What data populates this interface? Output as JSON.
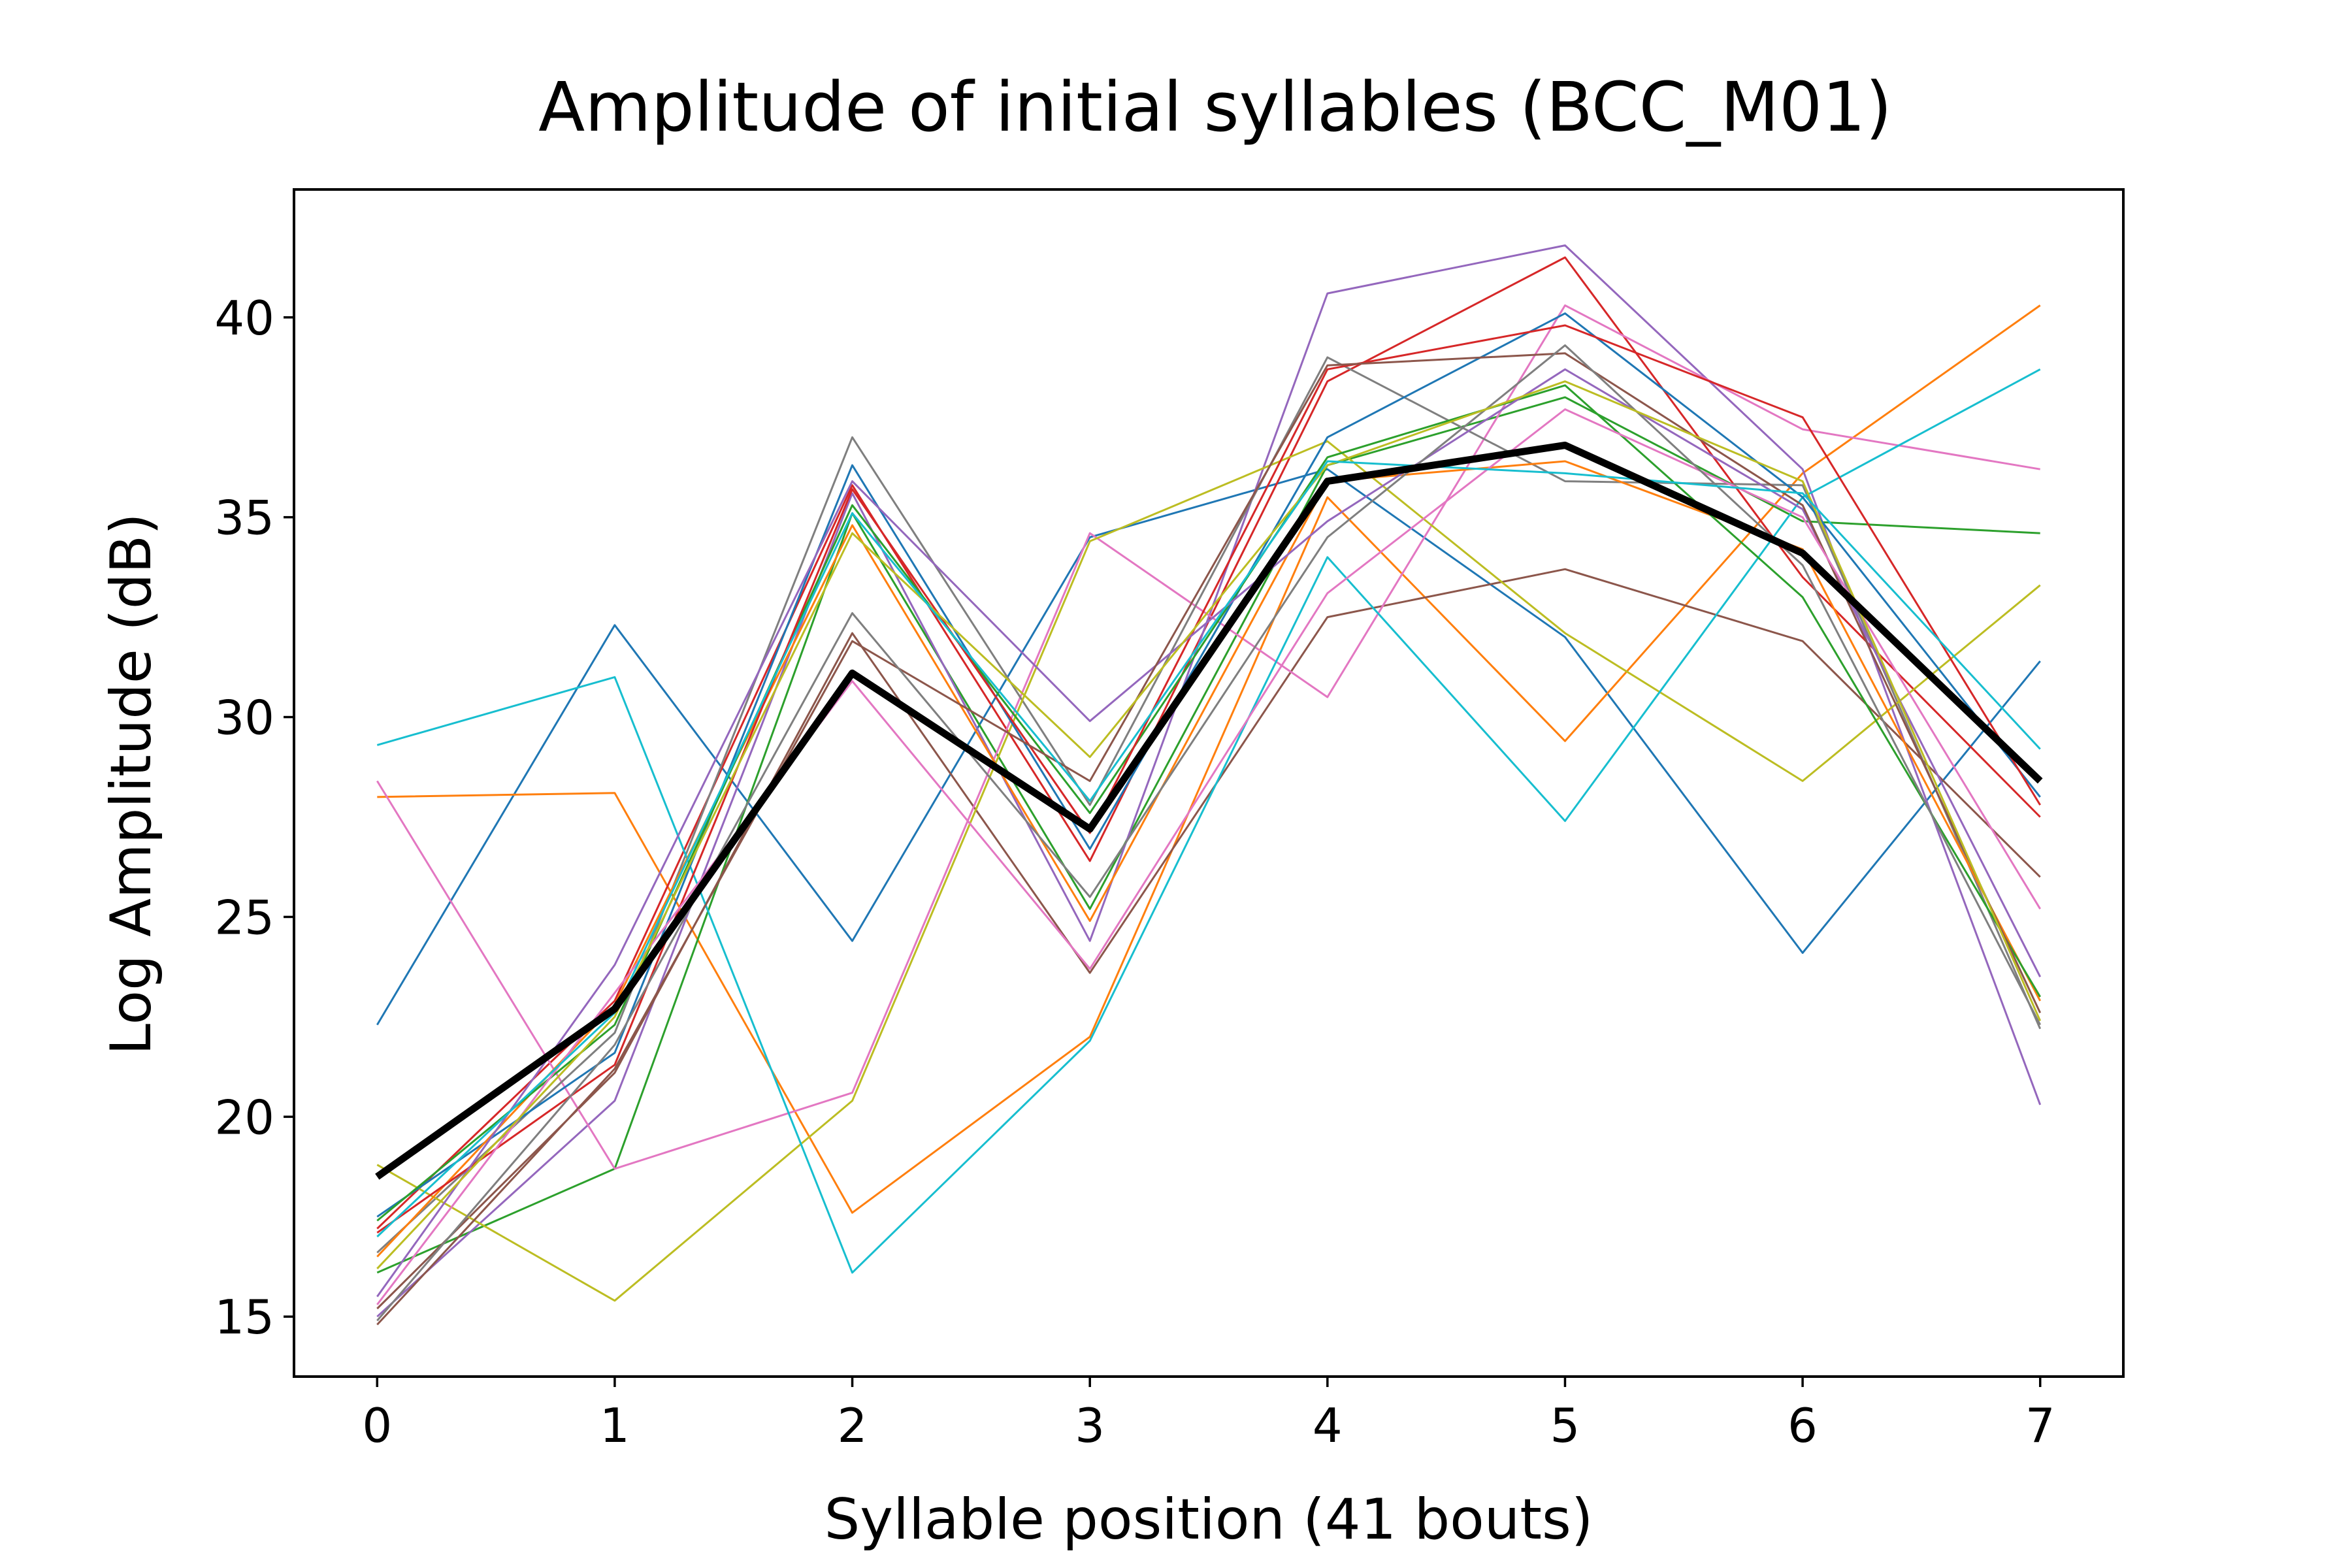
{
  "chart_data": {
    "type": "line",
    "title": "Amplitude of initial syllables (BCC_M01)",
    "xlabel": "Syllable position (41 bouts)",
    "ylabel": "Log Amplitude (dB)",
    "xlim": [
      -0.35,
      7.35
    ],
    "ylim": [
      13.5,
      43.2
    ],
    "x": [
      0,
      1,
      2,
      3,
      4,
      5,
      6,
      7
    ],
    "xticks": [
      "0",
      "1",
      "2",
      "3",
      "4",
      "5",
      "6",
      "7"
    ],
    "yticks": [
      15,
      20,
      25,
      30,
      35,
      40
    ],
    "ytick_labels": [
      "15",
      "20",
      "25",
      "30",
      "35",
      "40"
    ],
    "grid": false,
    "legend": "none",
    "series": [
      {
        "values": [
          22.3,
          32.3,
          24.4,
          34.5,
          36.2,
          32.0,
          24.1,
          31.4
        ],
        "color": "#1f77b4"
      },
      {
        "values": [
          28.0,
          28.1,
          17.6,
          22.0,
          35.5,
          29.4,
          36.1,
          40.3
        ],
        "color": "#ff7f0e"
      },
      {
        "values": [
          16.1,
          18.7,
          35.1,
          25.2,
          36.3,
          38.0,
          34.9,
          34.6
        ],
        "color": "#2ca02c"
      },
      {
        "values": [
          17.2,
          22.9,
          35.8,
          26.4,
          38.4,
          41.5,
          33.5,
          27.5
        ],
        "color": "#d62728"
      },
      {
        "values": [
          15.0,
          20.4,
          35.6,
          24.4,
          40.6,
          41.8,
          36.2,
          20.3
        ],
        "color": "#9467bd"
      },
      {
        "values": [
          15.2,
          21.1,
          32.1,
          23.6,
          32.5,
          33.7,
          31.9,
          26.0
        ],
        "color": "#8c564b"
      },
      {
        "values": [
          28.4,
          18.7,
          20.6,
          34.6,
          30.5,
          40.3,
          37.2,
          36.2
        ],
        "color": "#e377c2"
      },
      {
        "values": [
          16.6,
          22.1,
          37.0,
          27.8,
          39.0,
          35.9,
          35.8,
          22.2
        ],
        "color": "#7f7f7f"
      },
      {
        "values": [
          18.8,
          15.4,
          20.4,
          34.4,
          36.9,
          32.1,
          28.4,
          33.3
        ],
        "color": "#bcbd22"
      },
      {
        "values": [
          29.3,
          31.0,
          16.1,
          21.9,
          34.0,
          27.4,
          35.5,
          38.7
        ],
        "color": "#17becf"
      },
      {
        "values": [
          17.5,
          21.6,
          36.3,
          26.7,
          37.0,
          40.1,
          35.5,
          28.0
        ],
        "color": "#1f77b4"
      },
      {
        "values": [
          16.5,
          22.8,
          34.8,
          24.9,
          35.9,
          36.4,
          34.2,
          22.9
        ],
        "color": "#ff7f0e"
      },
      {
        "values": [
          17.4,
          22.3,
          35.3,
          27.6,
          36.5,
          38.3,
          33.0,
          23.0
        ],
        "color": "#2ca02c"
      },
      {
        "values": [
          17.1,
          21.3,
          35.7,
          27.1,
          38.7,
          39.8,
          37.5,
          27.8
        ],
        "color": "#d62728"
      },
      {
        "values": [
          15.5,
          23.8,
          35.9,
          29.9,
          34.9,
          38.7,
          35.2,
          23.5
        ],
        "color": "#9467bd"
      },
      {
        "values": [
          14.8,
          21.2,
          31.9,
          28.4,
          38.8,
          39.1,
          35.3,
          22.6
        ],
        "color": "#8c564b"
      },
      {
        "values": [
          15.3,
          23.1,
          30.9,
          23.7,
          33.1,
          37.7,
          35.0,
          25.2
        ],
        "color": "#e377c2"
      },
      {
        "values": [
          14.9,
          21.8,
          32.6,
          25.5,
          34.5,
          39.3,
          33.8,
          22.3
        ],
        "color": "#7f7f7f"
      },
      {
        "values": [
          16.2,
          22.5,
          34.6,
          29.0,
          36.3,
          38.4,
          35.9,
          22.4
        ],
        "color": "#bcbd22"
      },
      {
        "values": [
          17.0,
          22.6,
          35.1,
          27.9,
          36.4,
          36.1,
          35.6,
          29.2
        ],
        "color": "#17becf"
      }
    ],
    "mean_series": {
      "values": [
        18.5,
        22.7,
        31.1,
        27.2,
        35.9,
        36.8,
        34.1,
        28.4
      ],
      "color": "#000000"
    }
  }
}
